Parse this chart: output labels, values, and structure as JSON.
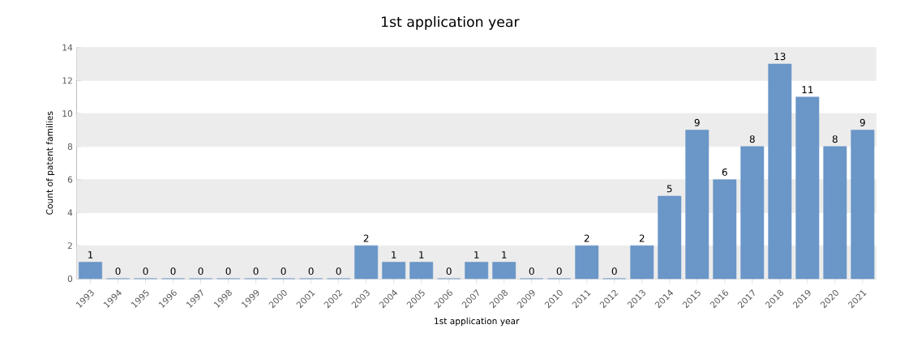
{
  "chart_data": {
    "type": "bar",
    "title": "1st application year",
    "xlabel": "1st application year",
    "ylabel": "Count of patent families",
    "categories": [
      "1993",
      "1994",
      "1995",
      "1996",
      "1997",
      "1998",
      "1999",
      "2000",
      "2001",
      "2002",
      "2003",
      "2004",
      "2005",
      "2006",
      "2007",
      "2008",
      "2009",
      "2010",
      "2011",
      "2012",
      "2013",
      "2014",
      "2015",
      "2016",
      "2017",
      "2018",
      "2019",
      "2020",
      "2021"
    ],
    "values": [
      1,
      0,
      0,
      0,
      0,
      0,
      0,
      0,
      0,
      0,
      2,
      1,
      1,
      0,
      1,
      1,
      0,
      0,
      2,
      0,
      2,
      5,
      9,
      6,
      8,
      13,
      11,
      8,
      9
    ],
    "color": "#6a96c8",
    "ylim": [
      0,
      14
    ],
    "yticks": [
      0,
      2,
      4,
      6,
      8,
      10,
      12,
      14
    ],
    "grid": "y",
    "data_labels": true
  }
}
